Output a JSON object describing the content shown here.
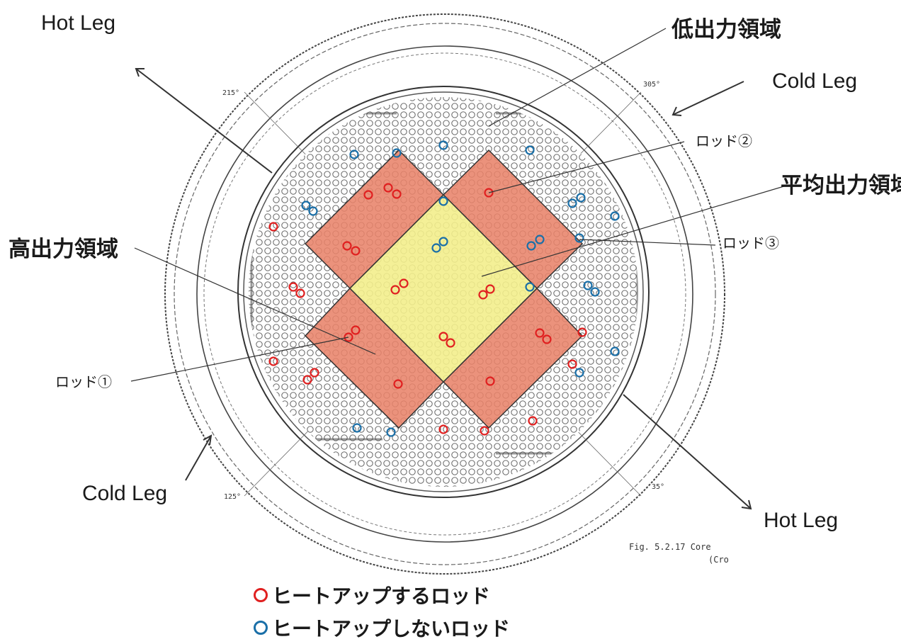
{
  "labels": {
    "hot_leg_top": "Hot Leg",
    "hot_leg_bottom": "Hot Leg",
    "cold_leg_top": "Cold Leg",
    "cold_leg_bottom": "Cold Leg",
    "low_power_region": "低出力領域",
    "average_power_region": "平均出力領域",
    "high_power_region": "高出力領域",
    "rod1": "ロッド①",
    "rod2": "ロッド②",
    "rod3": "ロッド③"
  },
  "angles": {
    "a215": "215°",
    "a305": "305°",
    "a125": "125°",
    "a35": "35°"
  },
  "figure_caption": {
    "line1": "Fig. 5.2.17  Core",
    "line2": "(Cro"
  },
  "legend": {
    "heatup": "ヒートアップするロッド",
    "no_heatup": "ヒートアップしないロッド"
  },
  "colors": {
    "heatup_ring": "#e02020",
    "no_heatup_ring": "#1a6fa8",
    "high_power_fill": "#e8836a",
    "average_power_fill": "#f3ee8c",
    "line": "#333333"
  }
}
